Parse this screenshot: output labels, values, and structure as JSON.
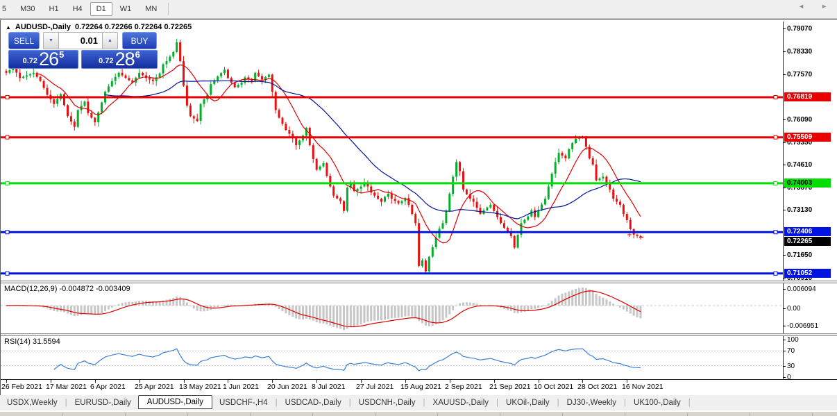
{
  "toolbar": {
    "timeframes": [
      {
        "label": "5",
        "active": false,
        "partial": true
      },
      {
        "label": "M30",
        "active": false
      },
      {
        "label": "H1",
        "active": false
      },
      {
        "label": "H4",
        "active": false
      },
      {
        "label": "D1",
        "active": true
      },
      {
        "label": "W1",
        "active": false
      },
      {
        "label": "MN",
        "active": false
      }
    ]
  },
  "chart": {
    "title": {
      "collapse_icon": "▲",
      "symbol": "AUDUSD-,Daily",
      "ohlc_text": "0.72264 0.72266 0.72264 0.72265"
    },
    "y_axis_labels": [
      "0.79070",
      "0.78330",
      "0.77570",
      "0.76090",
      "0.75350",
      "0.74610",
      "0.73870",
      "0.73130",
      "0.71650",
      "0.70910"
    ],
    "y_axis_prices": [
      0.7907,
      0.7833,
      0.7757,
      0.7609,
      0.7535,
      0.7461,
      0.7387,
      0.7313,
      0.7165,
      0.7091
    ],
    "badges": [
      {
        "text": "0.76819",
        "price": 0.76819,
        "bg": "#e80000",
        "fg": "#ffffff"
      },
      {
        "text": "0.75509",
        "price": 0.75509,
        "bg": "#e80000",
        "fg": "#ffffff"
      },
      {
        "text": "0.74003",
        "price": 0.74003,
        "bg": "#00dd00",
        "fg": "#000000"
      },
      {
        "text": "0.72406",
        "price": 0.72406,
        "bg": "#0013e0",
        "fg": "#ffffff"
      },
      {
        "text": "0.72265",
        "price": 0.72265,
        "bg": "#000000",
        "fg": "#ffffff",
        "below_line": true
      },
      {
        "text": "0.71052",
        "price": 0.71052,
        "bg": "#0013e0",
        "fg": "#ffffff"
      }
    ],
    "x_axis_labels": [
      "26 Feb 2021",
      "17 Mar 2021",
      "6 Apr 2021",
      "25 Apr 2021",
      "13 May 2021",
      "1 Jun 2021",
      "20 Jun 2021",
      "8 Jul 2021",
      "27 Jul 2021",
      "15 Aug 2021",
      "2 Sep 2021",
      "21 Sep 2021",
      "10 Oct 2021",
      "28 Oct 2021",
      "16 Nov 2021"
    ]
  },
  "quote_panel": {
    "sell_label": "SELL",
    "buy_label": "BUY",
    "volume": "0.01",
    "spin_down_icon": "▼",
    "spin_up_icon": "▲",
    "sell_price": {
      "prefix": "0.72",
      "big": "26",
      "sup": "5"
    },
    "buy_price": {
      "prefix": "0.72",
      "big": "28",
      "sup": "6"
    }
  },
  "indicators": {
    "macd": {
      "label_text": "MACD(12,26,9) -0.004872 -0.003409",
      "axis_labels": [
        "0.006094",
        "0.00",
        "-0.006951"
      ],
      "colors": {
        "histogram": "#c6c6c6",
        "signal": "#e00000"
      }
    },
    "rsi": {
      "label_text": "RSI(14) 31.5594",
      "axis_labels": [
        "100",
        "70",
        "30",
        "0"
      ],
      "color": "#3a7fd5"
    }
  },
  "tabs": {
    "scroll_left": "◄",
    "scroll_right": "►",
    "items": [
      {
        "label": "USDX,Weekly",
        "active": false
      },
      {
        "label": "EURUSD-,Daily",
        "active": false
      },
      {
        "label": "AUDUSD-,Daily",
        "active": true
      },
      {
        "label": "USDCHF-,H4",
        "active": false
      },
      {
        "label": "USDCAD-,Daily",
        "active": false
      },
      {
        "label": "USDCNH-,Daily",
        "active": false
      },
      {
        "label": "XAUUSD-,Daily",
        "active": false
      },
      {
        "label": "UKOil-,Daily",
        "active": false
      },
      {
        "label": "DJ30-,Weekly",
        "active": false
      },
      {
        "label": "UK100-,Daily",
        "active": false
      }
    ]
  },
  "chart_data": [
    {
      "type": "candlestick",
      "title": "AUDUSD-,Daily",
      "current_ohlc": {
        "open": 0.72264,
        "high": 0.72266,
        "low": 0.72264,
        "close": 0.72265
      },
      "n_bars": 187,
      "ylim": [
        0.7082,
        0.793
      ],
      "x_ticks": [
        "26 Feb 2021",
        "17 Mar 2021",
        "6 Apr 2021",
        "25 Apr 2021",
        "13 May 2021",
        "1 Jun 2021",
        "20 Jun 2021",
        "8 Jul 2021",
        "27 Jul 2021",
        "15 Aug 2021",
        "2 Sep 2021",
        "21 Sep 2021",
        "10 Oct 2021",
        "28 Oct 2021",
        "16 Nov 2021"
      ],
      "close_anchors": [
        [
          0,
          0.7762
        ],
        [
          2,
          0.778
        ],
        [
          4,
          0.7745
        ],
        [
          8,
          0.7762
        ],
        [
          10,
          0.7735
        ],
        [
          12,
          0.769
        ],
        [
          14,
          0.766
        ],
        [
          16,
          0.7692
        ],
        [
          18,
          0.762
        ],
        [
          20,
          0.7585
        ],
        [
          21,
          0.764
        ],
        [
          23,
          0.7668
        ],
        [
          24,
          0.763
        ],
        [
          26,
          0.76
        ],
        [
          28,
          0.7665
        ],
        [
          29,
          0.77
        ],
        [
          31,
          0.7735
        ],
        [
          33,
          0.7762
        ],
        [
          35,
          0.7745
        ],
        [
          37,
          0.773
        ],
        [
          39,
          0.7762
        ],
        [
          41,
          0.7745
        ],
        [
          43,
          0.7735
        ],
        [
          45,
          0.776
        ],
        [
          46,
          0.779
        ],
        [
          47,
          0.78
        ],
        [
          49,
          0.783
        ],
        [
          50,
          0.7862
        ],
        [
          51,
          0.78
        ],
        [
          52,
          0.772
        ],
        [
          53,
          0.7655
        ],
        [
          54,
          0.762
        ],
        [
          56,
          0.7605
        ],
        [
          57,
          0.766
        ],
        [
          59,
          0.769
        ],
        [
          60,
          0.7725
        ],
        [
          62,
          0.775
        ],
        [
          64,
          0.7772
        ],
        [
          65,
          0.7745
        ],
        [
          67,
          0.7715
        ],
        [
          69,
          0.773
        ],
        [
          70,
          0.7747
        ],
        [
          72,
          0.7735
        ],
        [
          73,
          0.7762
        ],
        [
          75,
          0.774
        ],
        [
          77,
          0.7756
        ],
        [
          78,
          0.77
        ],
        [
          79,
          0.764
        ],
        [
          80,
          0.7615
        ],
        [
          82,
          0.7575
        ],
        [
          84,
          0.755
        ],
        [
          85,
          0.7525
        ],
        [
          87,
          0.7556
        ],
        [
          88,
          0.7582
        ],
        [
          89,
          0.7525
        ],
        [
          90,
          0.748
        ],
        [
          91,
          0.7445
        ],
        [
          93,
          0.7466
        ],
        [
          94,
          0.7425
        ],
        [
          95,
          0.739
        ],
        [
          96,
          0.736
        ],
        [
          98,
          0.7342
        ],
        [
          99,
          0.731
        ],
        [
          100,
          0.7386
        ],
        [
          101,
          0.74
        ],
        [
          102,
          0.7375
        ],
        [
          104,
          0.739
        ],
        [
          105,
          0.7402
        ],
        [
          106,
          0.739
        ],
        [
          107,
          0.737
        ],
        [
          109,
          0.735
        ],
        [
          110,
          0.734
        ],
        [
          111,
          0.7356
        ],
        [
          112,
          0.7366
        ],
        [
          113,
          0.735
        ],
        [
          115,
          0.7335
        ],
        [
          116,
          0.7342
        ],
        [
          117,
          0.7352
        ],
        [
          118,
          0.733
        ],
        [
          120,
          0.727
        ],
        [
          121,
          0.713
        ],
        [
          122,
          0.7148
        ],
        [
          123,
          0.7112
        ],
        [
          124,
          0.716
        ],
        [
          126,
          0.7222
        ],
        [
          127,
          0.7252
        ],
        [
          128,
          0.727
        ],
        [
          129,
          0.731
        ],
        [
          131,
          0.7422
        ],
        [
          132,
          0.747
        ],
        [
          133,
          0.744
        ],
        [
          134,
          0.738
        ],
        [
          136,
          0.735
        ],
        [
          137,
          0.734
        ],
        [
          138,
          0.732
        ],
        [
          139,
          0.73
        ],
        [
          140,
          0.7312
        ],
        [
          142,
          0.733
        ],
        [
          143,
          0.731
        ],
        [
          144,
          0.729
        ],
        [
          145,
          0.727
        ],
        [
          147,
          0.724
        ],
        [
          148,
          0.7228
        ],
        [
          149,
          0.719
        ],
        [
          150,
          0.7232
        ],
        [
          151,
          0.727
        ],
        [
          153,
          0.7292
        ],
        [
          154,
          0.7312
        ],
        [
          155,
          0.729
        ],
        [
          156,
          0.7312
        ],
        [
          158,
          0.735
        ],
        [
          159,
          0.739
        ],
        [
          160,
          0.7432
        ],
        [
          161,
          0.747
        ],
        [
          162,
          0.75
        ],
        [
          164,
          0.7482
        ],
        [
          165,
          0.7512
        ],
        [
          166,
          0.7532
        ],
        [
          167,
          0.7546
        ],
        [
          169,
          0.7552
        ],
        [
          170,
          0.752
        ],
        [
          171,
          0.7482
        ],
        [
          172,
          0.7462
        ],
        [
          173,
          0.741
        ],
        [
          175,
          0.7422
        ],
        [
          176,
          0.74
        ],
        [
          177,
          0.738
        ],
        [
          178,
          0.735
        ],
        [
          180,
          0.733
        ],
        [
          181,
          0.73
        ],
        [
          182,
          0.728
        ],
        [
          183,
          0.725
        ],
        [
          184,
          0.7232
        ],
        [
          185,
          0.7228
        ],
        [
          186,
          0.7226
        ]
      ],
      "special_bars": {
        "123": {
          "low": 0.7106
        },
        "132": {
          "high": 0.7478
        },
        "169": {
          "high": 0.7556
        },
        "50": {
          "high": 0.7868
        }
      },
      "hlines": [
        {
          "price": 0.76819,
          "color": "#e80000"
        },
        {
          "price": 0.75509,
          "color": "#e80000"
        },
        {
          "price": 0.74003,
          "color": "#00dd00"
        },
        {
          "price": 0.72406,
          "color": "#0013e0"
        },
        {
          "price": 0.71052,
          "color": "#0013e0"
        }
      ],
      "moving_averages": [
        {
          "period": 10,
          "color": "#e00000"
        },
        {
          "period": 30,
          "color": "#001099"
        }
      ],
      "colors": {
        "up": "#00b02a",
        "down": "#e81010"
      }
    },
    {
      "type": "bar",
      "title": "MACD(12,26,9)",
      "params": [
        12,
        26,
        9
      ],
      "current_values": [
        -0.004872,
        -0.003409
      ],
      "ylim": [
        -0.006951,
        0.006094
      ],
      "axis_tick_values": [
        0.006094,
        0.0,
        -0.006951
      ]
    },
    {
      "type": "line",
      "title": "RSI(14)",
      "period": 14,
      "current_value": 31.5594,
      "levels": [
        70,
        30
      ],
      "ylim": [
        0,
        100
      ]
    }
  ]
}
